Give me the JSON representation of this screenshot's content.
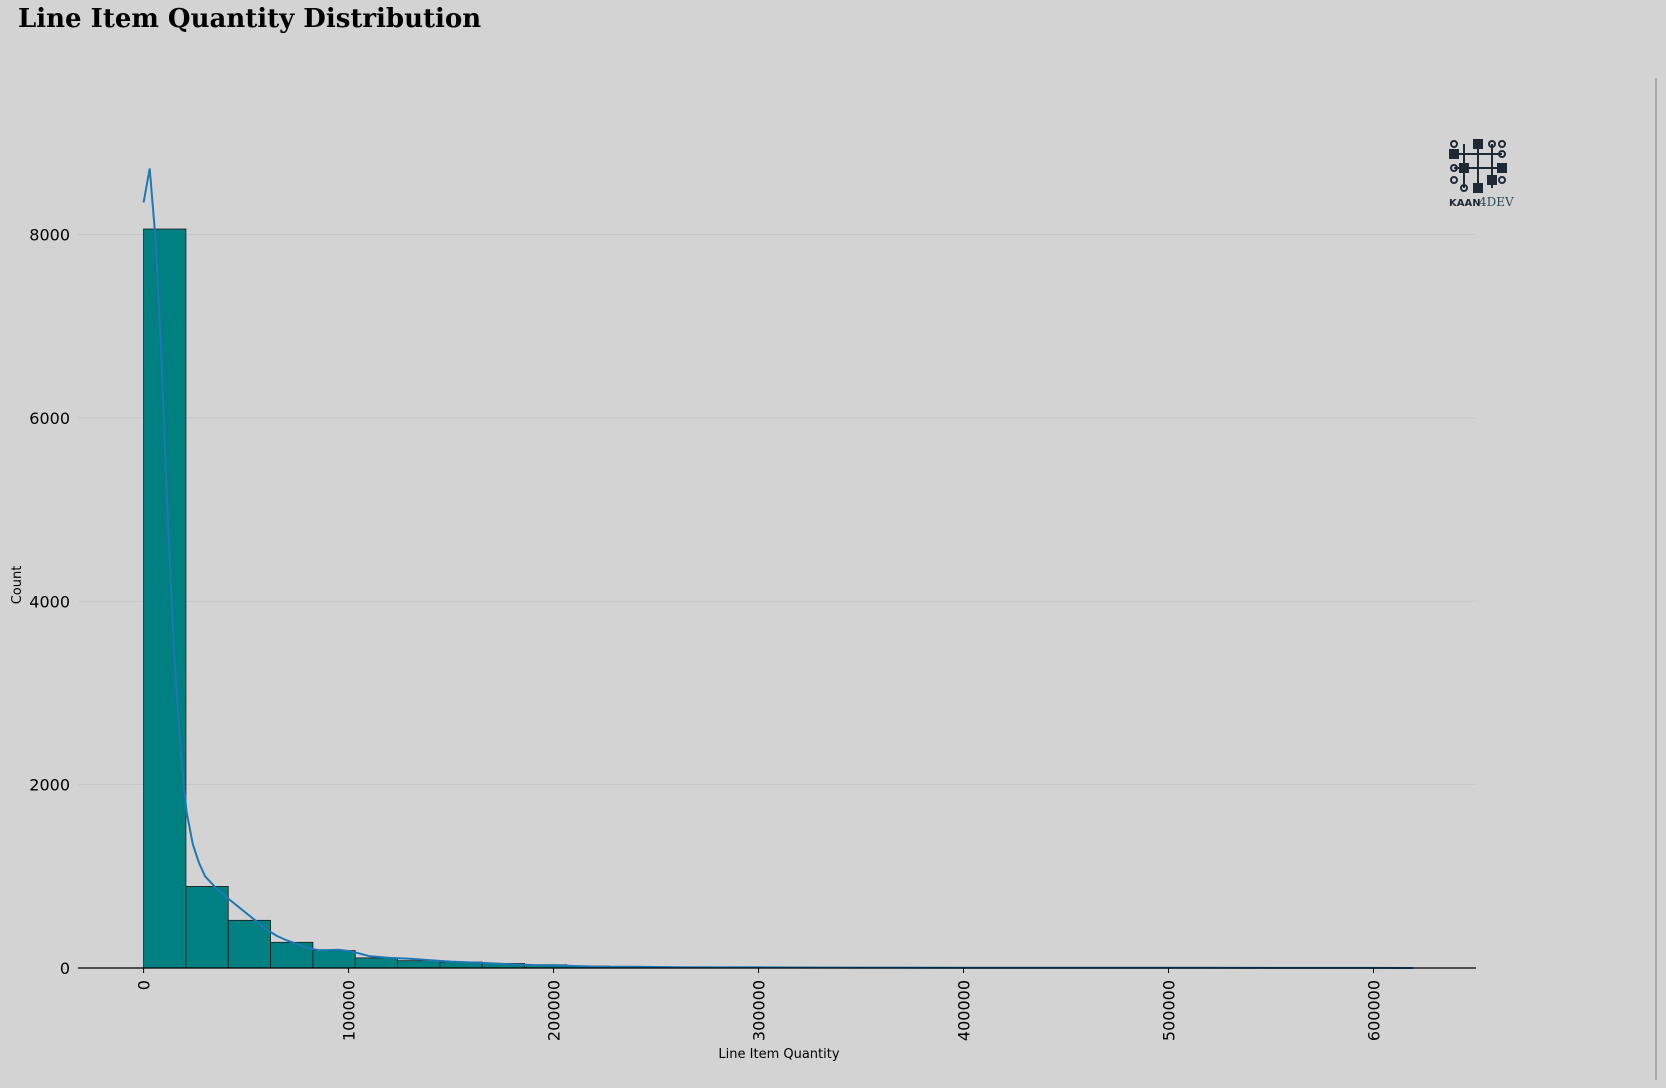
{
  "chart_data": {
    "type": "bar",
    "title": "Line Item Quantity Distribution",
    "xlabel": "Line Item Quantity",
    "ylabel": "Count",
    "bins": [
      {
        "x0": 0,
        "x1": 20650,
        "count": 8060
      },
      {
        "x0": 20650,
        "x1": 41300,
        "count": 890
      },
      {
        "x0": 41300,
        "x1": 61950,
        "count": 520
      },
      {
        "x0": 61950,
        "x1": 82600,
        "count": 280
      },
      {
        "x0": 82600,
        "x1": 103250,
        "count": 190
      },
      {
        "x0": 103250,
        "x1": 123900,
        "count": 110
      },
      {
        "x0": 123900,
        "x1": 144550,
        "count": 80
      },
      {
        "x0": 144550,
        "x1": 165200,
        "count": 65
      },
      {
        "x0": 165200,
        "x1": 185850,
        "count": 50
      },
      {
        "x0": 185850,
        "x1": 206500,
        "count": 35
      },
      {
        "x0": 206500,
        "x1": 227150,
        "count": 20
      },
      {
        "x0": 227150,
        "x1": 247800,
        "count": 15
      },
      {
        "x0": 247800,
        "x1": 268450,
        "count": 12
      },
      {
        "x0": 268450,
        "x1": 289100,
        "count": 10
      },
      {
        "x0": 289100,
        "x1": 309750,
        "count": 8
      },
      {
        "x0": 309750,
        "x1": 330400,
        "count": 6
      },
      {
        "x0": 330400,
        "x1": 351050,
        "count": 5
      },
      {
        "x0": 351050,
        "x1": 371700,
        "count": 4
      },
      {
        "x0": 371700,
        "x1": 392350,
        "count": 4
      },
      {
        "x0": 392350,
        "x1": 413000,
        "count": 3
      },
      {
        "x0": 413000,
        "x1": 433650,
        "count": 3
      },
      {
        "x0": 433650,
        "x1": 454300,
        "count": 2
      },
      {
        "x0": 454300,
        "x1": 474950,
        "count": 2
      },
      {
        "x0": 474950,
        "x1": 495600,
        "count": 2
      },
      {
        "x0": 495600,
        "x1": 516250,
        "count": 2
      },
      {
        "x0": 516250,
        "x1": 536900,
        "count": 1
      },
      {
        "x0": 536900,
        "x1": 557550,
        "count": 1
      },
      {
        "x0": 557550,
        "x1": 578200,
        "count": 1
      },
      {
        "x0": 578200,
        "x1": 598850,
        "count": 1
      },
      {
        "x0": 598850,
        "x1": 619500,
        "count": 1
      }
    ],
    "kde": [
      [
        0,
        8350
      ],
      [
        3000,
        8720
      ],
      [
        6000,
        7900
      ],
      [
        9000,
        6500
      ],
      [
        12000,
        4800
      ],
      [
        15000,
        3400
      ],
      [
        18000,
        2400
      ],
      [
        21000,
        1700
      ],
      [
        24000,
        1350
      ],
      [
        27000,
        1150
      ],
      [
        30000,
        1000
      ],
      [
        35000,
        880
      ],
      [
        40000,
        780
      ],
      [
        45000,
        690
      ],
      [
        50000,
        600
      ],
      [
        55000,
        510
      ],
      [
        60000,
        420
      ],
      [
        65000,
        350
      ],
      [
        70000,
        300
      ],
      [
        75000,
        260
      ],
      [
        80000,
        220
      ],
      [
        85000,
        195
      ],
      [
        90000,
        195
      ],
      [
        95000,
        200
      ],
      [
        100000,
        185
      ],
      [
        105000,
        160
      ],
      [
        110000,
        130
      ],
      [
        120000,
        110
      ],
      [
        130000,
        100
      ],
      [
        140000,
        85
      ],
      [
        150000,
        70
      ],
      [
        160000,
        60
      ],
      [
        170000,
        50
      ],
      [
        180000,
        40
      ],
      [
        190000,
        32
      ],
      [
        200000,
        30
      ],
      [
        210000,
        22
      ],
      [
        220000,
        15
      ],
      [
        240000,
        14
      ],
      [
        260000,
        8
      ],
      [
        280000,
        6
      ],
      [
        300000,
        8
      ],
      [
        320000,
        5
      ],
      [
        350000,
        4
      ],
      [
        400000,
        3
      ],
      [
        450000,
        2
      ],
      [
        500000,
        2
      ],
      [
        520000,
        3
      ],
      [
        550000,
        1
      ],
      [
        600000,
        1
      ],
      [
        619500,
        0
      ]
    ],
    "xticks": [
      0,
      100000,
      200000,
      300000,
      400000,
      500000,
      600000
    ],
    "yticks": [
      0,
      2000,
      4000,
      6000,
      8000
    ],
    "xlim": [
      -32000,
      650000
    ],
    "ylim": [
      0,
      9500
    ],
    "grid": "horizontal",
    "legend": "none",
    "colors": {
      "bar_fill": "#008080",
      "bar_edge": "#1a1a1a",
      "kde_line": "#1f77b4",
      "grid": "#c6c6c6",
      "background": "#d3d3d3"
    }
  },
  "logo": {
    "text_a": "KAAN",
    "text_b": "4DEV",
    "icon": "circuit-chip-icon"
  }
}
